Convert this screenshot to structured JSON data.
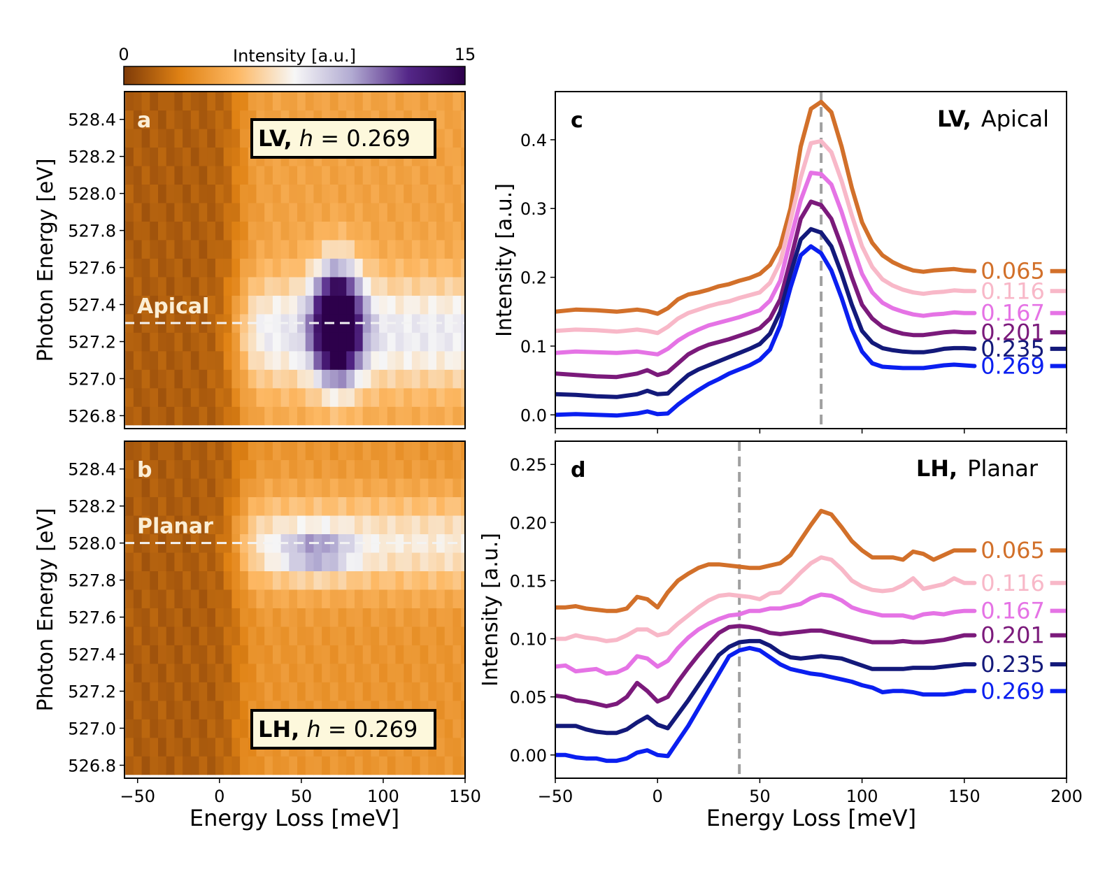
{
  "colorbar": {
    "label": "Intensity [a.u.]",
    "min_label": "0",
    "max_label": "15",
    "range": [
      0,
      15
    ],
    "colors": [
      "#7f3b08",
      "#e08214",
      "#fdb863",
      "#f7f7f7",
      "#b2abd2",
      "#542788",
      "#2d004b"
    ]
  },
  "chart_data": [
    {
      "panel": "a",
      "type": "heatmap",
      "badge": {
        "prefix": "LV,",
        "math": "h",
        "rest": " = 0.269"
      },
      "marker_label": "Apical",
      "marker_y": 527.3,
      "xlabel": "Energy Loss [meV]",
      "ylabel": "Photon Energy [eV]",
      "xlim": [
        -58,
        150
      ],
      "ylim": [
        526.73,
        528.55
      ],
      "xticks": [
        -50,
        0,
        50,
        100,
        150
      ],
      "yticks": [
        526.8,
        527.0,
        527.2,
        527.4,
        527.6,
        527.8,
        528.0,
        528.2,
        528.4
      ],
      "xtick_labels": [
        "−50",
        "0",
        "50",
        "100",
        "150"
      ],
      "ytick_labels": [
        "526.8",
        "527.0",
        "527.2",
        "527.4",
        "527.6",
        "527.8",
        "528.0",
        "528.2",
        "528.4"
      ],
      "x_bins": [
        -55,
        -50,
        -45,
        -40,
        -35,
        -30,
        -25,
        -20,
        -15,
        -10,
        -5,
        0,
        5,
        10,
        15,
        20,
        25,
        30,
        35,
        40,
        45,
        50,
        55,
        60,
        65,
        70,
        75,
        80,
        85,
        90,
        95,
        100,
        105,
        110,
        115,
        120,
        125,
        130,
        135,
        140,
        145,
        150
      ],
      "y_bins": [
        526.8,
        526.9,
        527.0,
        527.1,
        527.2,
        527.3,
        527.4,
        527.5,
        527.6,
        527.7,
        527.8,
        527.9,
        528.0,
        528.1,
        528.2,
        528.3,
        528.4,
        528.5
      ],
      "model": {
        "bg_left": 1.2,
        "bg_right": 4.0,
        "plateau_amp": 4.0,
        "plateau_y": 527.25,
        "plateau_sy": 0.3,
        "peak_amp": 13.0,
        "peak_x": 72,
        "peak_y": 527.3,
        "peak_sx": 14,
        "peak_sy": 0.3
      }
    },
    {
      "panel": "b",
      "type": "heatmap",
      "badge": {
        "prefix": "LH,",
        "math": "h",
        "rest": " = 0.269"
      },
      "marker_label": "Planar",
      "marker_y": 528.0,
      "xlabel": "Energy Loss [meV]",
      "ylabel": "Photon Energy [eV]",
      "xlim": [
        -58,
        150
      ],
      "ylim": [
        526.73,
        528.55
      ],
      "xticks": [
        -50,
        0,
        50,
        100,
        150
      ],
      "yticks": [
        526.8,
        527.0,
        527.2,
        527.4,
        527.6,
        527.8,
        528.0,
        528.2,
        528.4
      ],
      "xtick_labels": [
        "−50",
        "0",
        "50",
        "100",
        "150"
      ],
      "ytick_labels": [
        "526.8",
        "527.0",
        "527.2",
        "527.4",
        "527.6",
        "527.8",
        "528.0",
        "528.2",
        "528.4"
      ],
      "x_bins": [
        -55,
        -50,
        -45,
        -40,
        -35,
        -30,
        -25,
        -20,
        -15,
        -10,
        -5,
        0,
        5,
        10,
        15,
        20,
        25,
        30,
        35,
        40,
        45,
        50,
        55,
        60,
        65,
        70,
        75,
        80,
        85,
        90,
        95,
        100,
        105,
        110,
        115,
        120,
        125,
        130,
        135,
        140,
        145,
        150
      ],
      "y_bins": [
        526.8,
        526.9,
        527.0,
        527.1,
        527.2,
        527.3,
        527.4,
        527.5,
        527.6,
        527.7,
        527.8,
        527.9,
        528.0,
        528.1,
        528.2,
        528.3,
        528.4,
        528.5
      ],
      "model": {
        "bg_left": 1.2,
        "bg_right": 3.4,
        "plateau_amp": 3.6,
        "plateau_y": 528.0,
        "plateau_sy": 0.25,
        "peak_amp": 4.0,
        "peak_x": 60,
        "peak_y": 527.95,
        "peak_sx": 22,
        "peak_sy": 0.12
      }
    },
    {
      "panel": "c",
      "type": "line",
      "title_bold": "LV,",
      "title_rest": "Apical",
      "xlabel": "",
      "ylabel": "Intensity [a.u.]",
      "xlim": [
        -50,
        200
      ],
      "ylim": [
        -0.02,
        0.47
      ],
      "xticks": [
        -50,
        0,
        50,
        100,
        150,
        200
      ],
      "yticks": [
        0.0,
        0.1,
        0.2,
        0.3,
        0.4
      ],
      "ytick_labels": [
        "0.0",
        "0.1",
        "0.2",
        "0.3",
        "0.4"
      ],
      "vline_x": 80,
      "x": [
        -50,
        -40,
        -30,
        -20,
        -10,
        -5,
        0,
        5,
        10,
        15,
        20,
        25,
        30,
        35,
        40,
        45,
        50,
        55,
        60,
        65,
        70,
        75,
        80,
        85,
        90,
        95,
        100,
        105,
        110,
        115,
        120,
        125,
        130,
        135,
        140,
        145,
        150,
        155
      ],
      "series": [
        {
          "name": "0.065",
          "color": "#d2702a",
          "values": [
            0.15,
            0.153,
            0.152,
            0.15,
            0.153,
            0.151,
            0.147,
            0.155,
            0.168,
            0.175,
            0.178,
            0.182,
            0.187,
            0.19,
            0.195,
            0.199,
            0.205,
            0.218,
            0.245,
            0.3,
            0.39,
            0.445,
            0.455,
            0.44,
            0.39,
            0.33,
            0.28,
            0.25,
            0.232,
            0.222,
            0.215,
            0.21,
            0.208,
            0.21,
            0.211,
            0.212,
            0.21,
            0.209
          ]
        },
        {
          "name": "0.116",
          "color": "#f8b8c8",
          "values": [
            0.122,
            0.124,
            0.123,
            0.121,
            0.124,
            0.122,
            0.119,
            0.128,
            0.14,
            0.148,
            0.153,
            0.158,
            0.162,
            0.165,
            0.17,
            0.174,
            0.178,
            0.192,
            0.222,
            0.282,
            0.345,
            0.395,
            0.398,
            0.382,
            0.34,
            0.29,
            0.245,
            0.215,
            0.197,
            0.188,
            0.182,
            0.178,
            0.176,
            0.178,
            0.179,
            0.181,
            0.18,
            0.18
          ]
        },
        {
          "name": "0.167",
          "color": "#e573e5",
          "values": [
            0.09,
            0.092,
            0.091,
            0.09,
            0.092,
            0.09,
            0.088,
            0.096,
            0.108,
            0.117,
            0.124,
            0.13,
            0.134,
            0.138,
            0.142,
            0.147,
            0.152,
            0.166,
            0.195,
            0.255,
            0.312,
            0.352,
            0.35,
            0.335,
            0.295,
            0.248,
            0.205,
            0.178,
            0.163,
            0.155,
            0.15,
            0.146,
            0.144,
            0.146,
            0.147,
            0.149,
            0.148,
            0.148
          ]
        },
        {
          "name": "0.201",
          "color": "#7b1a7b",
          "values": [
            0.06,
            0.058,
            0.056,
            0.055,
            0.06,
            0.065,
            0.058,
            0.062,
            0.075,
            0.088,
            0.096,
            0.102,
            0.106,
            0.11,
            0.115,
            0.12,
            0.126,
            0.14,
            0.168,
            0.225,
            0.285,
            0.31,
            0.305,
            0.285,
            0.245,
            0.2,
            0.16,
            0.14,
            0.128,
            0.122,
            0.118,
            0.116,
            0.116,
            0.118,
            0.12,
            0.121,
            0.12,
            0.12
          ]
        },
        {
          "name": "0.235",
          "color": "#13197a",
          "values": [
            0.03,
            0.029,
            0.027,
            0.026,
            0.03,
            0.035,
            0.03,
            0.031,
            0.045,
            0.058,
            0.066,
            0.072,
            0.078,
            0.084,
            0.09,
            0.096,
            0.103,
            0.118,
            0.15,
            0.205,
            0.255,
            0.27,
            0.265,
            0.245,
            0.205,
            0.16,
            0.122,
            0.105,
            0.097,
            0.094,
            0.092,
            0.091,
            0.091,
            0.093,
            0.096,
            0.097,
            0.097,
            0.096
          ]
        },
        {
          "name": "0.269",
          "color": "#0a1ff0",
          "values": [
            0.0,
            0.001,
            0.0,
            -0.001,
            0.002,
            0.005,
            0.001,
            0.002,
            0.015,
            0.026,
            0.036,
            0.045,
            0.052,
            0.06,
            0.066,
            0.072,
            0.08,
            0.095,
            0.13,
            0.185,
            0.232,
            0.245,
            0.235,
            0.21,
            0.17,
            0.125,
            0.092,
            0.075,
            0.07,
            0.069,
            0.068,
            0.068,
            0.068,
            0.07,
            0.072,
            0.073,
            0.072,
            0.071
          ]
        }
      ]
    },
    {
      "panel": "d",
      "type": "line",
      "title_bold": "LH,",
      "title_rest": "Planar",
      "xlabel": "Energy Loss [meV]",
      "ylabel": "Intensity [a.u.]",
      "xlim": [
        -50,
        200
      ],
      "ylim": [
        -0.02,
        0.27
      ],
      "xticks": [
        -50,
        0,
        50,
        100,
        150,
        200
      ],
      "xtick_labels": [
        "−50",
        "0",
        "50",
        "100",
        "150",
        "200"
      ],
      "yticks": [
        0.0,
        0.05,
        0.1,
        0.15,
        0.2,
        0.25
      ],
      "ytick_labels": [
        "0.00",
        "0.05",
        "0.10",
        "0.15",
        "0.20",
        "0.25"
      ],
      "vline_x": 40,
      "x": [
        -50,
        -45,
        -40,
        -35,
        -30,
        -25,
        -20,
        -15,
        -10,
        -5,
        0,
        5,
        10,
        15,
        20,
        25,
        30,
        35,
        40,
        45,
        50,
        55,
        60,
        65,
        70,
        75,
        80,
        85,
        90,
        95,
        100,
        105,
        110,
        115,
        120,
        125,
        130,
        135,
        140,
        145,
        150,
        155
      ],
      "series": [
        {
          "name": "0.065",
          "color": "#d2702a",
          "values": [
            0.127,
            0.127,
            0.128,
            0.126,
            0.125,
            0.124,
            0.124,
            0.126,
            0.136,
            0.134,
            0.127,
            0.14,
            0.15,
            0.156,
            0.161,
            0.164,
            0.164,
            0.163,
            0.162,
            0.161,
            0.161,
            0.163,
            0.165,
            0.172,
            0.185,
            0.198,
            0.21,
            0.207,
            0.196,
            0.184,
            0.176,
            0.17,
            0.17,
            0.17,
            0.168,
            0.175,
            0.173,
            0.168,
            0.172,
            0.176,
            0.176,
            0.176
          ]
        },
        {
          "name": "0.116",
          "color": "#f8b8c8",
          "values": [
            0.1,
            0.1,
            0.103,
            0.101,
            0.1,
            0.098,
            0.099,
            0.103,
            0.108,
            0.108,
            0.103,
            0.105,
            0.113,
            0.12,
            0.127,
            0.133,
            0.137,
            0.138,
            0.137,
            0.136,
            0.134,
            0.139,
            0.14,
            0.148,
            0.157,
            0.165,
            0.17,
            0.168,
            0.16,
            0.15,
            0.145,
            0.142,
            0.141,
            0.142,
            0.146,
            0.152,
            0.143,
            0.145,
            0.147,
            0.152,
            0.148,
            0.148
          ]
        },
        {
          "name": "0.167",
          "color": "#e573e5",
          "values": [
            0.076,
            0.077,
            0.072,
            0.073,
            0.074,
            0.07,
            0.071,
            0.075,
            0.085,
            0.083,
            0.076,
            0.081,
            0.092,
            0.101,
            0.108,
            0.113,
            0.117,
            0.12,
            0.121,
            0.124,
            0.124,
            0.126,
            0.126,
            0.128,
            0.13,
            0.135,
            0.138,
            0.137,
            0.133,
            0.127,
            0.124,
            0.122,
            0.12,
            0.12,
            0.12,
            0.118,
            0.121,
            0.122,
            0.121,
            0.123,
            0.124,
            0.124
          ]
        },
        {
          "name": "0.201",
          "color": "#7b1a7b",
          "values": [
            0.051,
            0.05,
            0.047,
            0.046,
            0.044,
            0.042,
            0.044,
            0.05,
            0.062,
            0.055,
            0.046,
            0.05,
            0.063,
            0.075,
            0.086,
            0.096,
            0.105,
            0.11,
            0.111,
            0.11,
            0.108,
            0.105,
            0.104,
            0.105,
            0.106,
            0.107,
            0.107,
            0.105,
            0.103,
            0.101,
            0.099,
            0.097,
            0.097,
            0.097,
            0.098,
            0.097,
            0.097,
            0.098,
            0.099,
            0.101,
            0.103,
            0.103
          ]
        },
        {
          "name": "0.235",
          "color": "#13197a",
          "values": [
            0.025,
            0.025,
            0.025,
            0.022,
            0.02,
            0.019,
            0.019,
            0.022,
            0.028,
            0.033,
            0.026,
            0.023,
            0.035,
            0.047,
            0.06,
            0.073,
            0.086,
            0.093,
            0.097,
            0.098,
            0.098,
            0.094,
            0.088,
            0.084,
            0.083,
            0.084,
            0.085,
            0.084,
            0.083,
            0.08,
            0.077,
            0.074,
            0.074,
            0.074,
            0.074,
            0.075,
            0.075,
            0.075,
            0.076,
            0.077,
            0.078,
            0.078
          ]
        },
        {
          "name": "0.269",
          "color": "#0a1ff0",
          "values": [
            0.0,
            0.0,
            -0.002,
            -0.003,
            -0.003,
            -0.005,
            -0.005,
            -0.003,
            0.002,
            0.004,
            0.0,
            -0.001,
            0.012,
            0.025,
            0.04,
            0.055,
            0.07,
            0.085,
            0.09,
            0.092,
            0.09,
            0.084,
            0.078,
            0.074,
            0.072,
            0.07,
            0.069,
            0.067,
            0.065,
            0.063,
            0.06,
            0.058,
            0.054,
            0.055,
            0.055,
            0.054,
            0.052,
            0.052,
            0.052,
            0.053,
            0.055,
            0.055
          ]
        }
      ]
    }
  ]
}
